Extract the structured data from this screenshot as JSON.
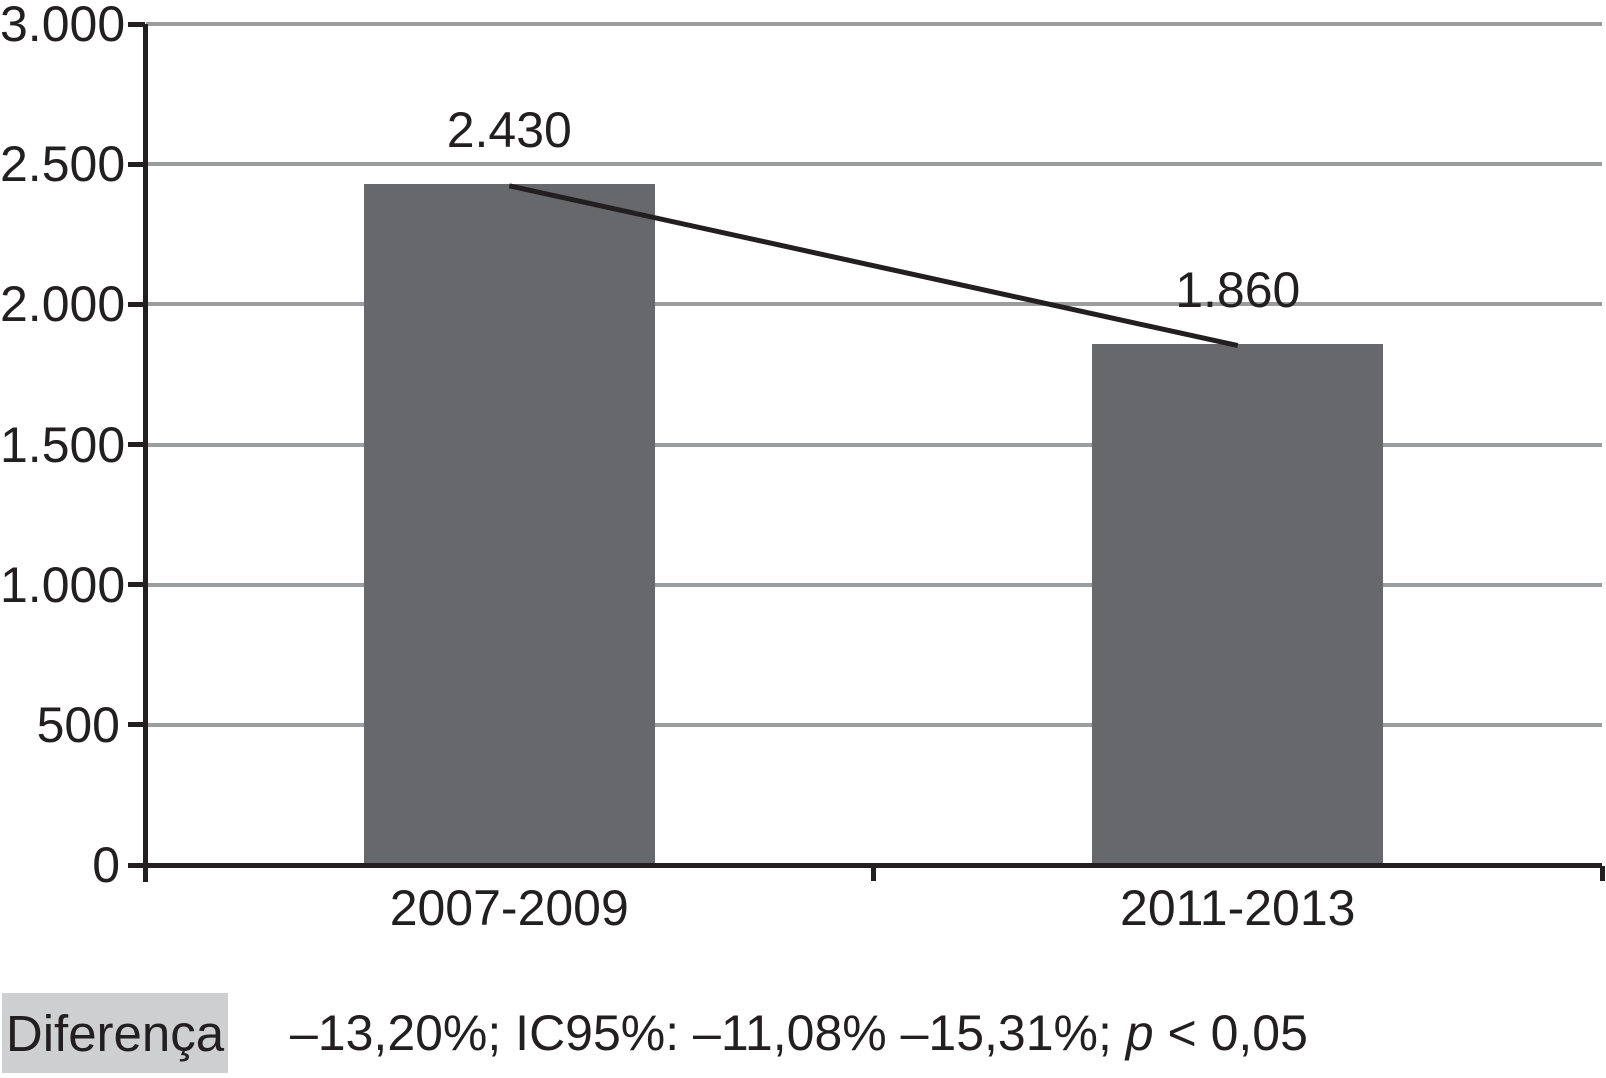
{
  "chart_data": {
    "type": "bar",
    "title": "",
    "xlabel": "",
    "ylabel": "",
    "categories": [
      "2007-2009",
      "2011-2013"
    ],
    "values": [
      2430,
      1860
    ],
    "value_labels": [
      "2.430",
      "1.860"
    ],
    "ylim": [
      0,
      3000
    ],
    "y_tick_values": [
      0,
      500,
      1000,
      1500,
      2000,
      2500,
      3000
    ],
    "y_tick_labels": [
      "0",
      "500",
      "1.000",
      "1.500",
      "2.000",
      "2.500",
      "3.000"
    ],
    "grid": true,
    "legend": "none",
    "connector_line_between_bar_tops": true,
    "annotation": {
      "label": "Diferença",
      "stats_before_p": "–13,20%; IC95%: –11,08% –15,31%; ",
      "p_symbol": "p",
      "stats_after_p": " < 0,05"
    },
    "colors": {
      "bar": "#66686C",
      "gridline": "#9A9C9E",
      "axis": "#231F20",
      "annotation_label_bg": "#CDCFD0",
      "background": "#FFFFFF"
    }
  }
}
